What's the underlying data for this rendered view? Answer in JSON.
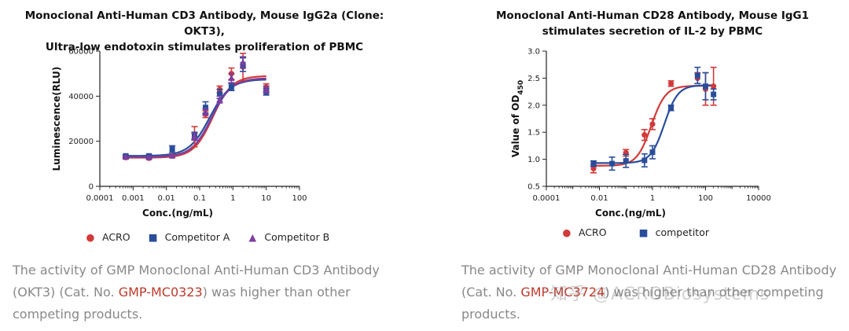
{
  "colors": {
    "acro": "#d23a3a",
    "competitor_a": "#2a4d9b",
    "competitor_b": "#7b3f9e",
    "caption": "#888888",
    "cat_link": "#c0392b"
  },
  "chart_data": [
    {
      "type": "scatter",
      "title": "Monoclonal Anti-Human CD3 Antibody, Mouse IgG2a (Clone: OKT3), Ultra-low endotoxin stimulates proliferation of PBMC",
      "title_lines": [
        "Monoclonal Anti-Human CD3 Antibody, Mouse IgG2a (Clone: OKT3),",
        "Ultra-low endotoxin stimulates proliferation of PBMC"
      ],
      "xlabel": "Conc.(ng/mL)",
      "ylabel": "Luminescence(RLU)",
      "xscale": "log",
      "xlim": [
        0.0001,
        100
      ],
      "ylim": [
        0,
        60000
      ],
      "xticks": [
        "0.0001",
        "0.001",
        "0.01",
        "0.1",
        "1",
        "10",
        "100"
      ],
      "yticks": [
        "0",
        "20000",
        "40000",
        "60000"
      ],
      "legend_placement": "bottom",
      "series": [
        {
          "name": "ACRO",
          "marker": "circle",
          "x": [
            0.0006,
            0.003,
            0.015,
            0.07,
            0.15,
            0.4,
            0.9,
            2,
            10
          ],
          "y": [
            12800,
            12500,
            13500,
            22000,
            32000,
            43000,
            50000,
            53000,
            44000
          ],
          "err": [
            500,
            500,
            500,
            4500,
            1500,
            1500,
            2500,
            6000,
            1500
          ]
        },
        {
          "name": "Competitor A",
          "marker": "square",
          "x": [
            0.0006,
            0.003,
            0.015,
            0.07,
            0.15,
            0.4,
            0.9,
            2,
            10
          ],
          "y": [
            13500,
            13500,
            16500,
            22500,
            35000,
            41000,
            44000,
            54000,
            42000
          ],
          "err": [
            500,
            500,
            1500,
            1500,
            2500,
            2000,
            1500,
            3000,
            1500
          ]
        },
        {
          "name": "Competitor B",
          "marker": "triangle",
          "x": [
            0.0006,
            0.003,
            0.015,
            0.07,
            0.15,
            0.4,
            0.9,
            2,
            10
          ],
          "y": [
            13000,
            12800,
            13500,
            22000,
            33000,
            38500,
            48000,
            55000,
            43000
          ],
          "err": [
            500,
            500,
            500,
            1500,
            1500,
            1500,
            2000,
            2500,
            1500
          ]
        }
      ],
      "curves": [
        {
          "series": "ACRO",
          "bottom": 12700,
          "top": 49000,
          "ec50": 0.25,
          "hill": 1.5
        },
        {
          "series": "Competitor A",
          "bottom": 13500,
          "top": 47500,
          "ec50": 0.2,
          "hill": 1.4
        },
        {
          "series": "Competitor B",
          "bottom": 13000,
          "top": 48000,
          "ec50": 0.23,
          "hill": 1.45
        }
      ]
    },
    {
      "type": "scatter",
      "title": "Monoclonal Anti-Human CD28 Antibody, Mouse IgG1 stimulates secretion of IL-2 by PBMC",
      "title_lines": [
        "Monoclonal Anti-Human CD28 Antibody, Mouse IgG1",
        "stimulates secretion of IL-2 by PBMC"
      ],
      "xlabel": "Conc.(ng/mL)",
      "ylabel": "Value of OD",
      "ylabel_sub": "450",
      "xscale": "log",
      "xlim": [
        0.0001,
        10000
      ],
      "ylim": [
        0.5,
        3.0
      ],
      "xticks": [
        "0.0001",
        "0.01",
        "1",
        "100",
        "10000"
      ],
      "yticks": [
        "0.5",
        "1.0",
        "1.5",
        "2.0",
        "2.5",
        "3.0"
      ],
      "legend_placement": "bottom",
      "series": [
        {
          "name": "ACRO",
          "marker": "circle",
          "x": [
            0.006,
            0.1,
            0.5,
            1,
            5,
            50,
            100,
            200
          ],
          "y": [
            0.83,
            1.12,
            1.45,
            1.65,
            2.4,
            2.5,
            2.3,
            2.35
          ],
          "err": [
            0.08,
            0.06,
            0.1,
            0.1,
            0.05,
            0.1,
            0.3,
            0.35
          ]
        },
        {
          "name": "competitor",
          "marker": "square",
          "x": [
            0.006,
            0.03,
            0.1,
            0.5,
            1,
            5,
            50,
            100,
            200
          ],
          "y": [
            0.92,
            0.92,
            0.97,
            0.98,
            1.13,
            1.95,
            2.55,
            2.35,
            2.2
          ],
          "err": [
            0.05,
            0.12,
            0.12,
            0.12,
            0.12,
            0.05,
            0.15,
            0.25,
            0.1
          ]
        }
      ],
      "curves": [
        {
          "series": "ACRO",
          "bottom": 0.88,
          "top": 2.36,
          "ec50": 0.9,
          "hill": 1.6
        },
        {
          "series": "competitor",
          "bottom": 0.93,
          "top": 2.37,
          "ec50": 2.8,
          "hill": 1.7
        }
      ]
    }
  ],
  "captions": [
    {
      "before": "The activity of GMP Monoclonal Anti-Human CD3 Antibody (OKT3) (Cat. No. ",
      "cat": "GMP-MC0323",
      "after": ") was higher than other competing products."
    },
    {
      "before": "The activity of GMP Monoclonal Anti-Human CD28 Antibody (Cat. No. ",
      "cat": "GMP-MC3724",
      "after": ") was higher than other competing products."
    }
  ],
  "watermark": "知乎 @ACROBiosystems"
}
